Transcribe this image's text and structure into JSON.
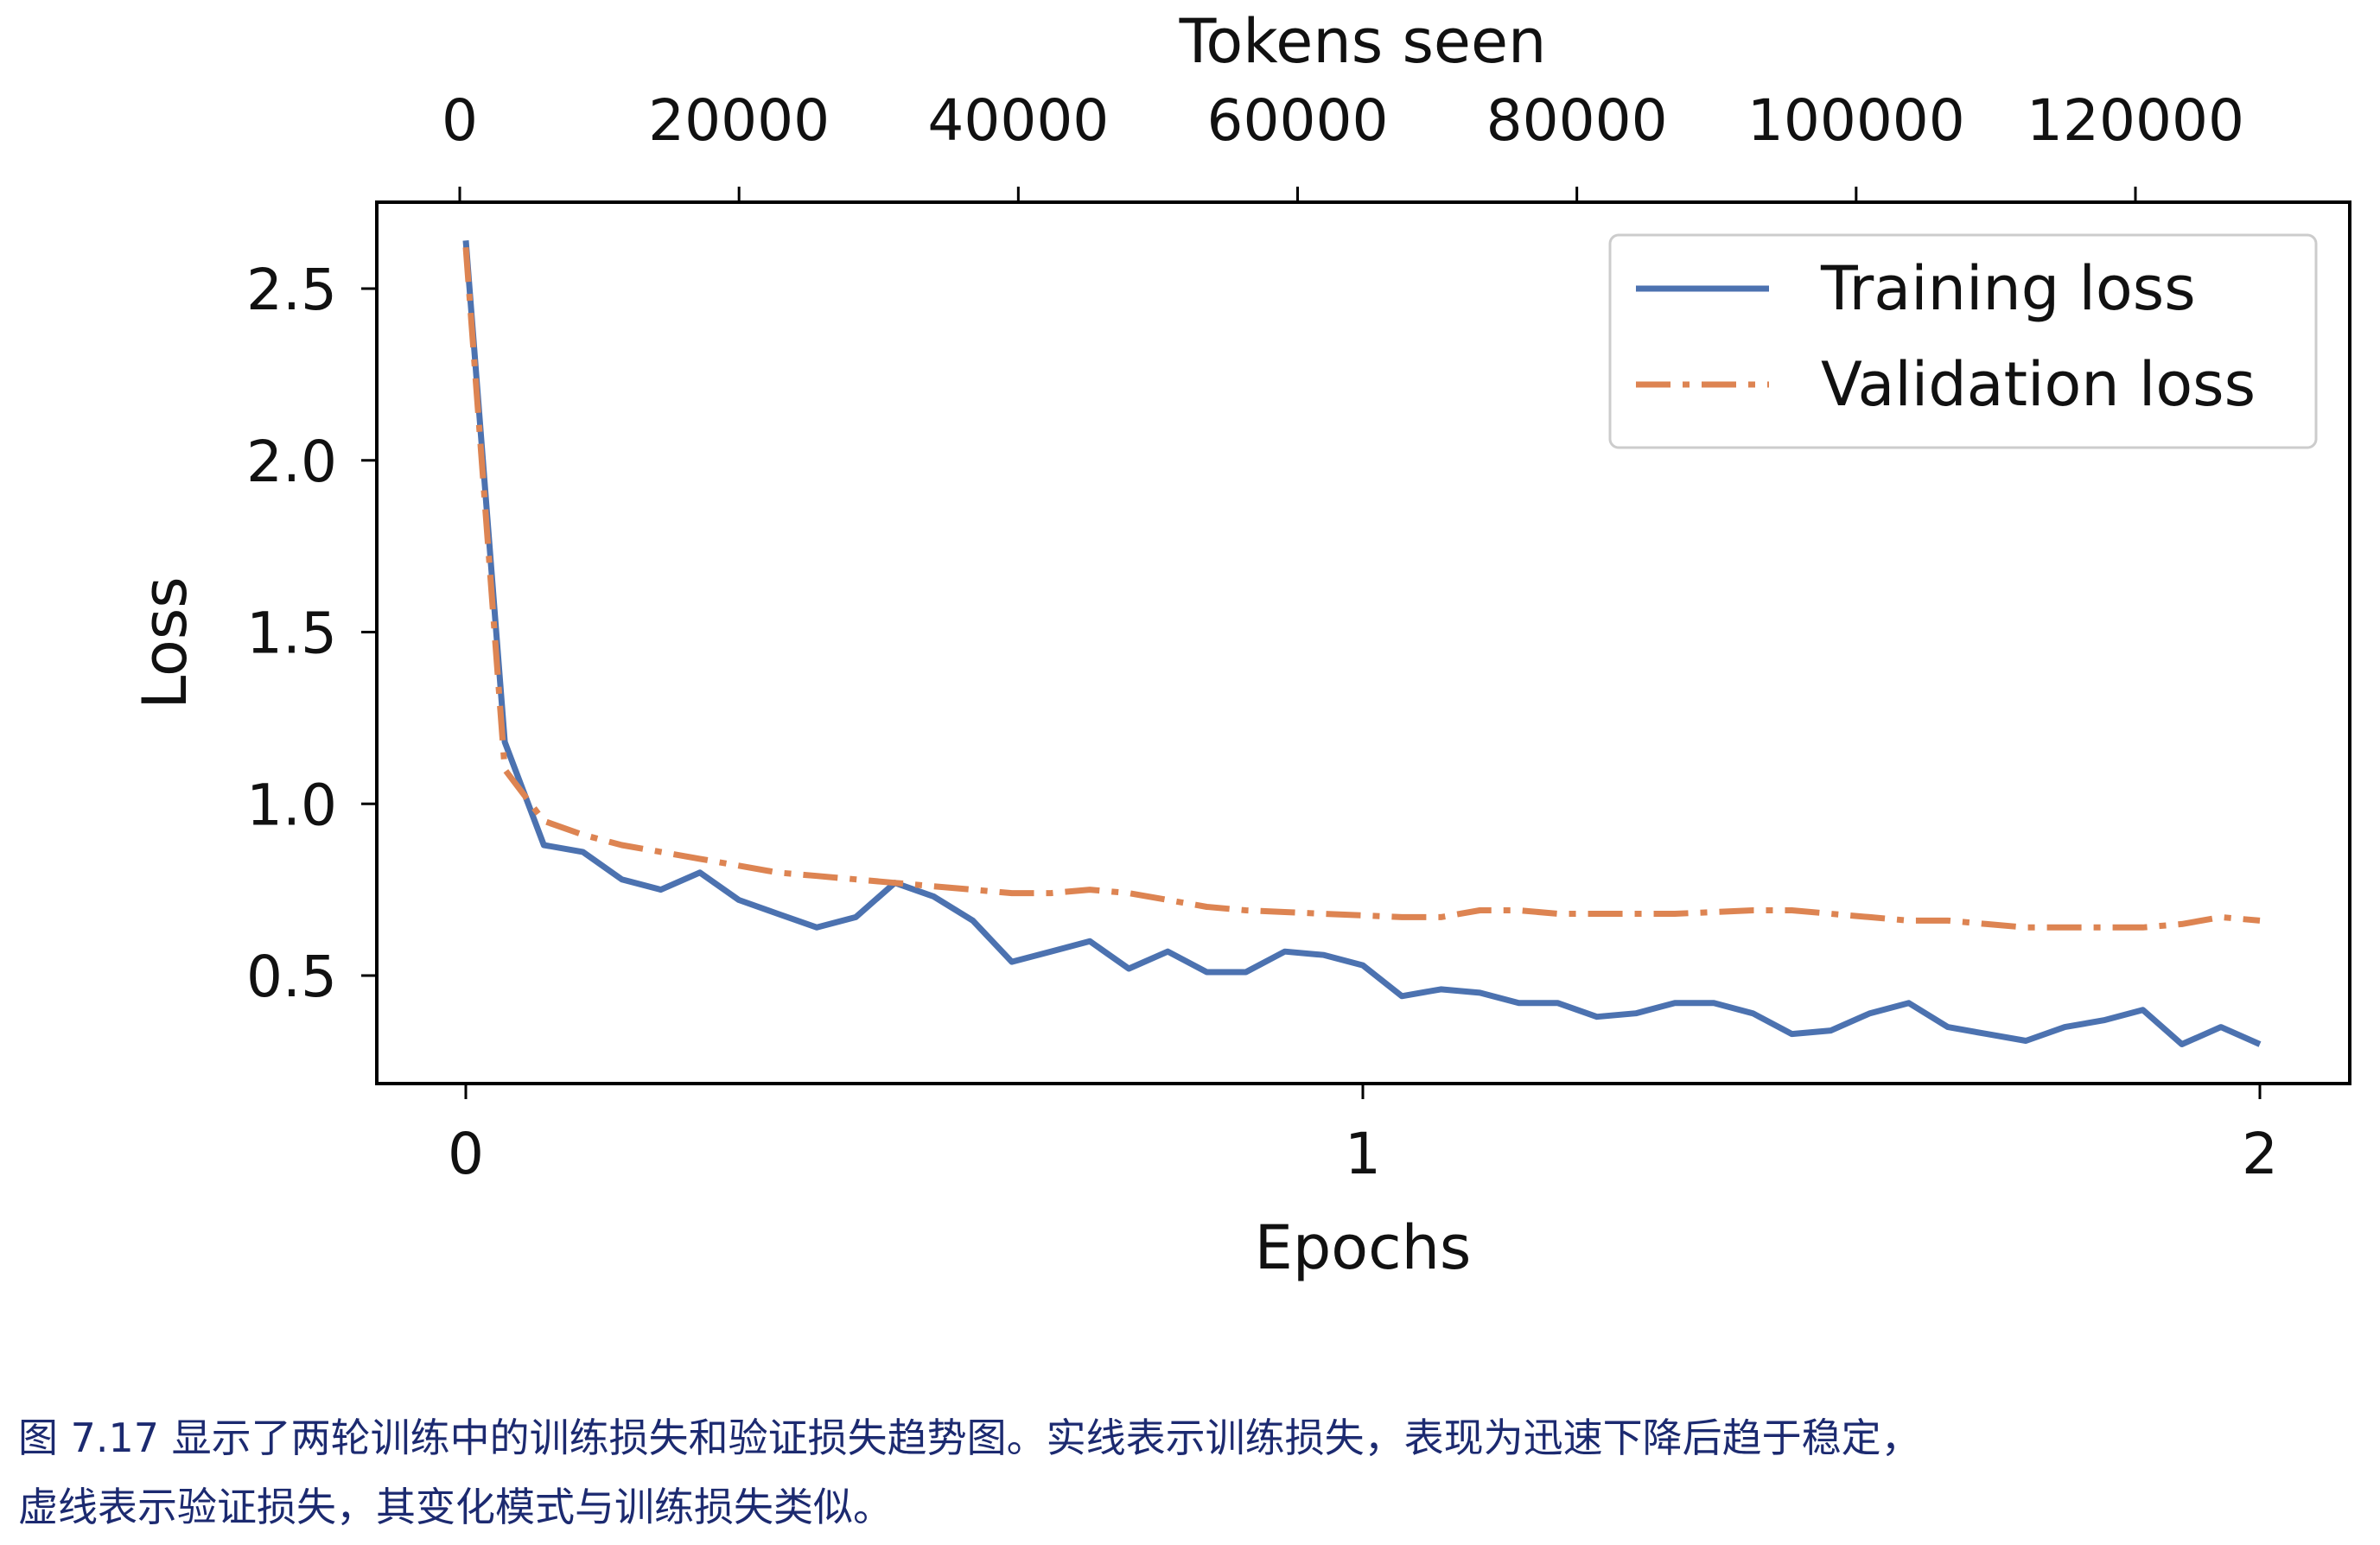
{
  "chart_data": {
    "type": "line",
    "xlabel": "Epochs",
    "ylabel": "Loss",
    "secondary_xlabel": "Tokens seen",
    "xlim": [
      -0.1,
      2.1
    ],
    "ylim": [
      0.25,
      2.7
    ],
    "x_ticks": [
      "0",
      "1",
      "2"
    ],
    "y_ticks": [
      "0.5",
      "1.0",
      "1.5",
      "2.0",
      "2.5"
    ],
    "secondary_x_ticks": [
      "0",
      "20000",
      "40000",
      "60000",
      "80000",
      "100000",
      "120000"
    ],
    "secondary_x_max": 129000,
    "grid": false,
    "legend_position": "top-right",
    "series": [
      {
        "name": "Training loss",
        "color": "#4c72b0",
        "style": "solid",
        "values": [
          2.64,
          1.18,
          0.88,
          0.86,
          0.78,
          0.75,
          0.8,
          0.72,
          0.68,
          0.64,
          0.67,
          0.77,
          0.73,
          0.66,
          0.54,
          0.57,
          0.6,
          0.52,
          0.57,
          0.51,
          0.51,
          0.57,
          0.56,
          0.53,
          0.44,
          0.46,
          0.45,
          0.42,
          0.42,
          0.38,
          0.39,
          0.42,
          0.42,
          0.39,
          0.33,
          0.34,
          0.39,
          0.42,
          0.35,
          0.33,
          0.31,
          0.35,
          0.37,
          0.4,
          0.3,
          0.35,
          0.3
        ]
      },
      {
        "name": "Validation loss",
        "color": "#dd8452",
        "style": "dashdot",
        "values": [
          2.62,
          1.1,
          0.95,
          0.91,
          0.88,
          0.86,
          0.84,
          0.82,
          0.8,
          0.79,
          0.78,
          0.77,
          0.76,
          0.75,
          0.74,
          0.74,
          0.75,
          0.74,
          0.72,
          0.7,
          0.69,
          0.685,
          0.68,
          0.675,
          0.67,
          0.67,
          0.69,
          0.69,
          0.68,
          0.68,
          0.68,
          0.68,
          0.685,
          0.69,
          0.69,
          0.68,
          0.67,
          0.66,
          0.66,
          0.65,
          0.64,
          0.64,
          0.64,
          0.64,
          0.65,
          0.67,
          0.66
        ]
      }
    ],
    "epoch_range": [
      0,
      2
    ]
  },
  "caption": {
    "line1": "图 7.17 显示了两轮训练中的训练损失和验证损失趋势图。实线表示训练损失，表现为迅速下降后趋于稳定，",
    "line2": "虚线表示验证损失，其变化模式与训练损失类似。"
  }
}
